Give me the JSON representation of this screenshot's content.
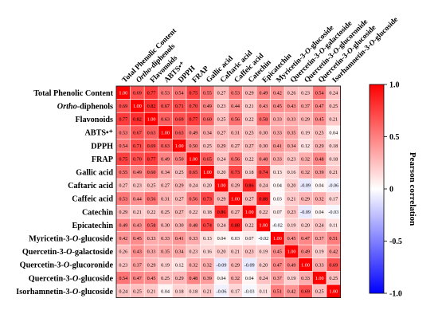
{
  "chart_data": {
    "type": "heatmap",
    "title": "",
    "rows": [
      {
        "pre": "Total Phenolic Content",
        "it": "",
        "post": ""
      },
      {
        "pre": "",
        "it": "Ortho",
        "post": "-diphenols"
      },
      {
        "pre": "Flavonoids",
        "it": "",
        "post": ""
      },
      {
        "pre": "ABTS•⁺",
        "it": "",
        "post": ""
      },
      {
        "pre": "DPPH",
        "it": "",
        "post": ""
      },
      {
        "pre": "FRAP",
        "it": "",
        "post": ""
      },
      {
        "pre": "Gallic acid",
        "it": "",
        "post": ""
      },
      {
        "pre": "Caftaric acid",
        "it": "",
        "post": ""
      },
      {
        "pre": "Caffeic acid",
        "it": "",
        "post": ""
      },
      {
        "pre": "Catechin",
        "it": "",
        "post": ""
      },
      {
        "pre": "Epicatechin",
        "it": "",
        "post": ""
      },
      {
        "pre": "Myricetin-3-",
        "it": "O",
        "post": "-glucoside"
      },
      {
        "pre": "Quercetin-3-",
        "it": "O",
        "post": "-galactoside"
      },
      {
        "pre": "Quercetin-3-",
        "it": "O",
        "post": "-glucoronide"
      },
      {
        "pre": "Quercetin-3-",
        "it": "O",
        "post": "-glucoside"
      },
      {
        "pre": "Isorhamnetin-3-",
        "it": "O",
        "post": "-glucoside"
      }
    ],
    "values": [
      [
        1.0,
        0.69,
        0.77,
        0.53,
        0.54,
        0.75,
        0.55,
        0.27,
        0.53,
        0.29,
        0.49,
        0.42,
        0.26,
        0.23,
        0.54,
        0.24
      ],
      [
        0.69,
        1.0,
        0.82,
        0.67,
        0.71,
        0.7,
        0.49,
        0.23,
        0.44,
        0.21,
        0.43,
        0.45,
        0.43,
        0.37,
        0.47,
        0.25
      ],
      [
        0.77,
        0.82,
        1.0,
        0.63,
        0.69,
        0.77,
        0.6,
        0.25,
        0.56,
        0.22,
        0.58,
        0.33,
        0.33,
        0.29,
        0.45,
        0.21
      ],
      [
        0.53,
        0.67,
        0.63,
        1.0,
        0.63,
        0.49,
        0.34,
        0.27,
        0.31,
        0.25,
        0.3,
        0.33,
        0.35,
        0.19,
        0.25,
        0.04
      ],
      [
        0.54,
        0.71,
        0.69,
        0.63,
        1.0,
        0.5,
        0.25,
        0.29,
        0.27,
        0.27,
        0.3,
        0.41,
        0.34,
        0.12,
        0.29,
        0.18
      ],
      [
        0.75,
        0.7,
        0.77,
        0.49,
        0.5,
        1.0,
        0.65,
        0.24,
        0.56,
        0.22,
        0.48,
        0.33,
        0.23,
        0.32,
        0.48,
        0.18
      ],
      [
        0.55,
        0.49,
        0.6,
        0.34,
        0.25,
        0.65,
        1.0,
        0.2,
        0.73,
        0.18,
        0.74,
        0.13,
        0.16,
        0.32,
        0.39,
        0.21
      ],
      [
        0.27,
        0.23,
        0.25,
        0.27,
        0.29,
        0.24,
        0.2,
        1.0,
        0.29,
        0.86,
        0.24,
        0.04,
        0.2,
        -0.09,
        0.04,
        -0.06
      ],
      [
        0.53,
        0.44,
        0.56,
        0.31,
        0.27,
        0.56,
        0.73,
        0.29,
        1.0,
        0.27,
        0.88,
        0.03,
        0.21,
        0.29,
        0.32,
        0.17
      ],
      [
        0.29,
        0.21,
        0.22,
        0.25,
        0.27,
        0.22,
        0.18,
        0.86,
        0.27,
        1.0,
        0.22,
        0.07,
        0.23,
        -0.09,
        0.04,
        -0.03
      ],
      [
        0.49,
        0.43,
        0.58,
        0.3,
        0.3,
        0.48,
        0.74,
        0.24,
        0.88,
        0.22,
        1.0,
        -0.02,
        0.19,
        0.2,
        0.24,
        0.11
      ],
      [
        0.42,
        0.45,
        0.33,
        0.33,
        0.41,
        0.33,
        0.13,
        0.04,
        0.03,
        0.07,
        -0.02,
        1.0,
        0.45,
        0.47,
        0.37,
        0.51
      ],
      [
        0.26,
        0.43,
        0.33,
        0.35,
        0.34,
        0.23,
        0.16,
        0.2,
        0.21,
        0.23,
        0.19,
        0.45,
        1.0,
        0.49,
        0.19,
        0.42
      ],
      [
        0.23,
        0.37,
        0.29,
        0.19,
        0.12,
        0.32,
        0.32,
        -0.09,
        0.29,
        -0.09,
        0.2,
        0.47,
        0.49,
        1.0,
        0.33,
        0.69
      ],
      [
        0.54,
        0.47,
        0.45,
        0.25,
        0.29,
        0.48,
        0.39,
        0.04,
        0.32,
        0.04,
        0.24,
        0.37,
        0.19,
        0.33,
        1.0,
        0.25
      ],
      [
        0.24,
        0.25,
        0.21,
        0.04,
        0.18,
        0.18,
        0.21,
        -0.06,
        0.17,
        -0.03,
        0.11,
        0.51,
        0.42,
        0.69,
        0.25,
        1.0
      ]
    ],
    "colorbar": {
      "title": "Pearson correlation",
      "range": [
        -1.0,
        1.0
      ],
      "ticks": [
        "1.0",
        "0.5",
        "0",
        "-0.5",
        "-1.0"
      ],
      "colors": {
        "positive": "#ff0000",
        "zero": "#ffffff",
        "negative": "#0000ff"
      }
    }
  }
}
